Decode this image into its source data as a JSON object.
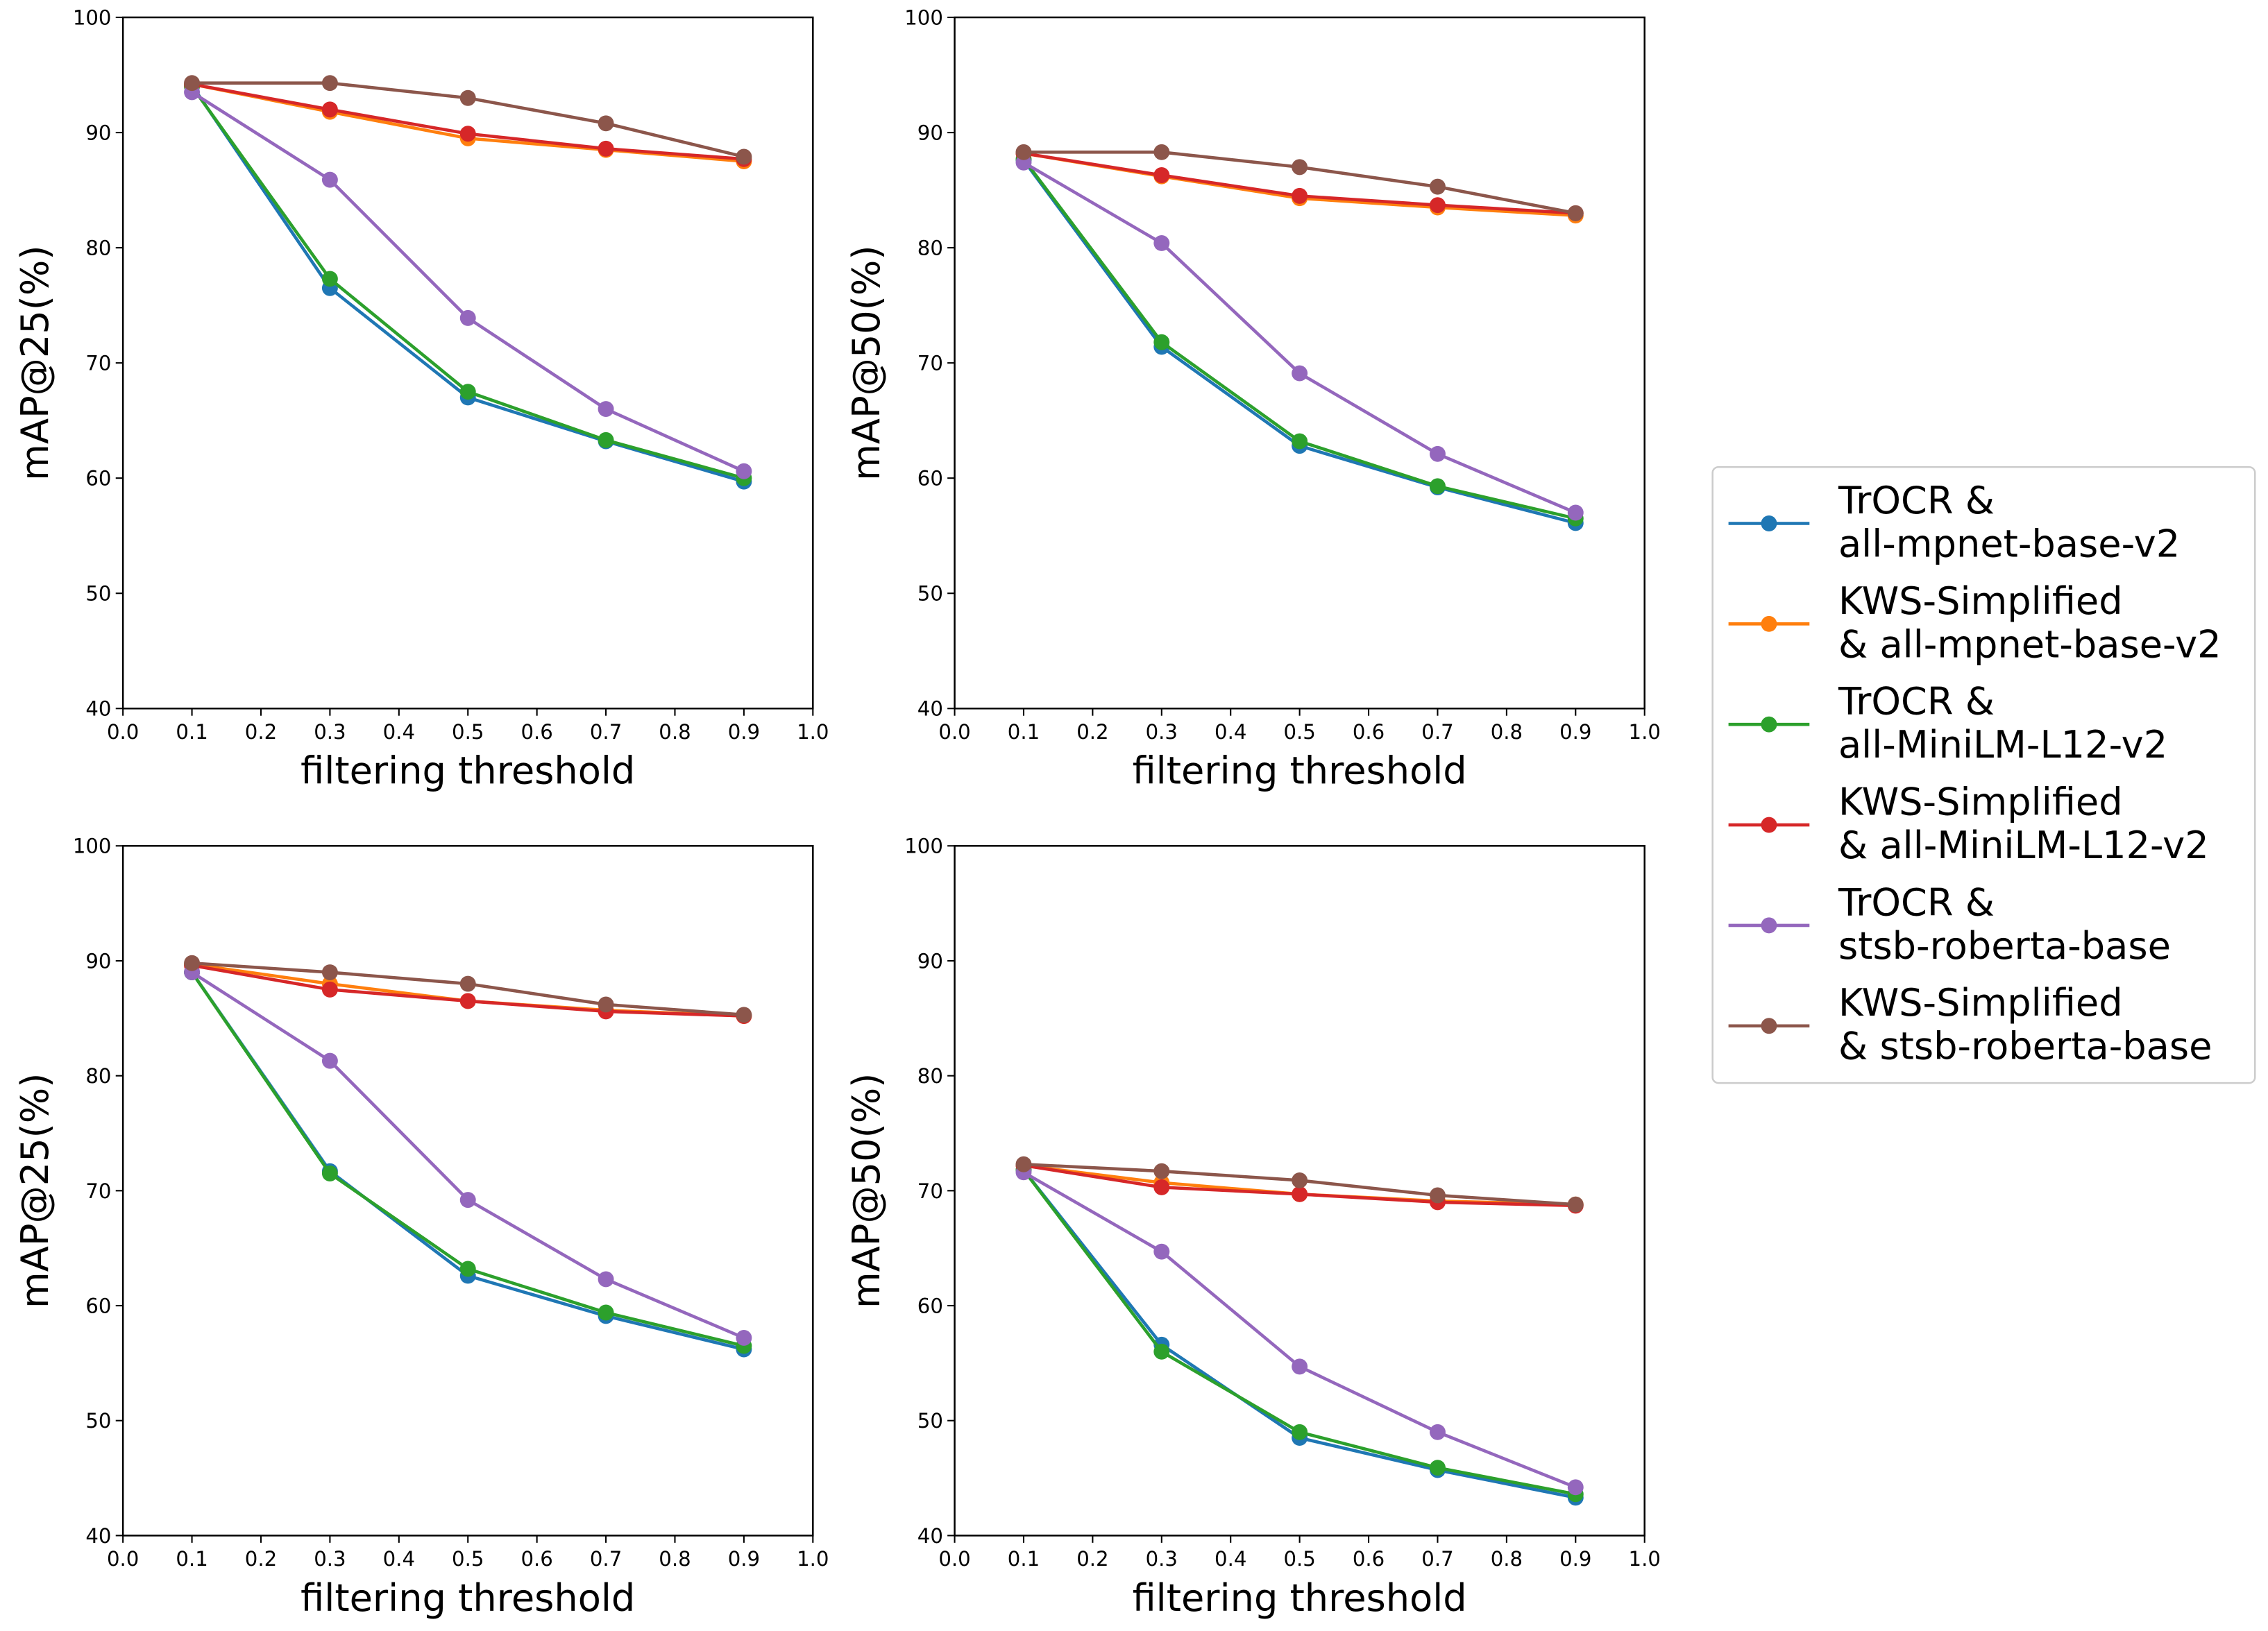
{
  "chart_data": {
    "type": "line",
    "legend": {
      "placement": "right",
      "entries": [
        {
          "line1": "TrOCR &",
          "line2": "all-mpnet-base-v2",
          "color": "#1f77b4"
        },
        {
          "line1": "KWS-Simplified",
          "line2": "& all-mpnet-base-v2",
          "color": "#ff7f0e"
        },
        {
          "line1": "TrOCR &",
          "line2": "all-MiniLM-L12-v2",
          "color": "#2ca02c"
        },
        {
          "line1": "KWS-Simplified",
          "line2": "& all-MiniLM-L12-v2",
          "color": "#d62728"
        },
        {
          "line1": "TrOCR &",
          "line2": "stsb-roberta-base",
          "color": "#9467bd"
        },
        {
          "line1": "KWS-Simplified",
          "line2": "& stsb-roberta-base",
          "color": "#8c564b"
        }
      ]
    },
    "x": [
      0.1,
      0.3,
      0.5,
      0.7,
      0.9
    ],
    "xlim": [
      0.0,
      1.0
    ],
    "ylim": [
      40,
      100
    ],
    "xticks": [
      "0.0",
      "0.1",
      "0.2",
      "0.3",
      "0.4",
      "0.5",
      "0.6",
      "0.7",
      "0.8",
      "0.9",
      "1.0"
    ],
    "yticks": [
      "40",
      "50",
      "60",
      "70",
      "80",
      "90",
      "100"
    ],
    "grid": false,
    "panels": [
      {
        "xlabel": "filtering threshold",
        "ylabel": "mAP@25(%)",
        "series": [
          [
            94.1,
            76.5,
            67.0,
            63.2,
            59.7
          ],
          [
            94.2,
            91.8,
            89.5,
            88.5,
            87.5
          ],
          [
            94.0,
            77.3,
            67.5,
            63.3,
            60.0
          ],
          [
            94.2,
            92.0,
            89.9,
            88.6,
            87.7
          ],
          [
            93.5,
            85.9,
            73.9,
            66.0,
            60.6
          ],
          [
            94.3,
            94.3,
            93.0,
            90.8,
            87.9
          ]
        ]
      },
      {
        "xlabel": "filtering threshold",
        "ylabel": "mAP@50(%)",
        "series": [
          [
            87.6,
            71.4,
            62.8,
            59.2,
            56.1
          ],
          [
            88.2,
            86.2,
            84.3,
            83.5,
            82.8
          ],
          [
            87.7,
            71.8,
            63.2,
            59.3,
            56.5
          ],
          [
            88.2,
            86.3,
            84.5,
            83.7,
            83.0
          ],
          [
            87.4,
            80.4,
            69.1,
            62.1,
            57.0
          ],
          [
            88.3,
            88.3,
            87.0,
            85.3,
            83.0
          ]
        ]
      },
      {
        "xlabel": "filtering threshold",
        "ylabel": "mAP@25(%)",
        "series": [
          [
            89.0,
            71.7,
            62.6,
            59.1,
            56.2
          ],
          [
            89.7,
            88.0,
            86.5,
            85.7,
            85.2
          ],
          [
            89.0,
            71.5,
            63.2,
            59.4,
            56.5
          ],
          [
            89.6,
            87.5,
            86.5,
            85.6,
            85.2
          ],
          [
            89.0,
            81.3,
            69.2,
            62.3,
            57.2
          ],
          [
            89.8,
            89.0,
            88.0,
            86.2,
            85.3
          ]
        ]
      },
      {
        "xlabel": "filtering threshold",
        "ylabel": "mAP@50(%)",
        "series": [
          [
            71.8,
            56.6,
            48.5,
            45.7,
            43.3
          ],
          [
            72.2,
            70.7,
            69.7,
            69.1,
            68.8
          ],
          [
            71.8,
            56.0,
            49.0,
            45.9,
            43.6
          ],
          [
            72.2,
            70.3,
            69.7,
            69.0,
            68.7
          ],
          [
            71.6,
            64.7,
            54.7,
            49.0,
            44.2
          ],
          [
            72.3,
            71.7,
            70.9,
            69.6,
            68.8
          ]
        ]
      }
    ]
  }
}
